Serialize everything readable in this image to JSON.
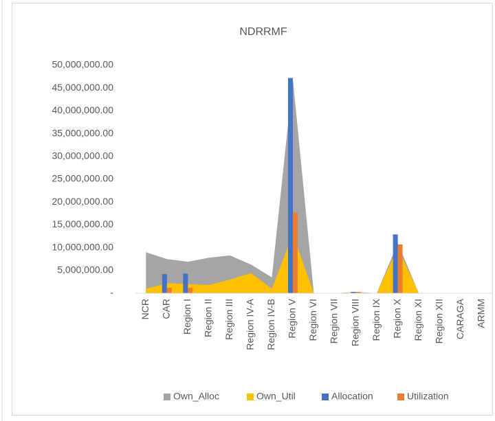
{
  "chart_data": {
    "type": "combo",
    "title": "NDRRMF",
    "categories": [
      "NCR",
      "CAR",
      "Region I",
      "Region II",
      "Region III",
      "Region IV-A",
      "Region IV-B",
      "Region V",
      "Region VI",
      "Region VII",
      "Region VIII",
      "Region IX",
      "Region X",
      "Region XI",
      "Region XII",
      "CARAGA",
      "ARMM"
    ],
    "series": [
      {
        "name": "Own_Alloc",
        "kind": "area",
        "color": "#a5a5a5",
        "values": [
          9000000,
          7500000,
          6900000,
          7800000,
          8300000,
          6300000,
          3500000,
          47000000,
          0,
          0,
          300000,
          0,
          11000000,
          0,
          0,
          0,
          0
        ]
      },
      {
        "name": "Own_Util",
        "kind": "area",
        "color": "#ffc000",
        "values": [
          1000000,
          2200000,
          2000000,
          1800000,
          3000000,
          4400000,
          1000000,
          13000000,
          0,
          0,
          200000,
          0,
          10000000,
          0,
          0,
          0,
          0
        ]
      },
      {
        "name": "Allocation",
        "kind": "bar",
        "color": "#4472c4",
        "values": [
          0,
          4200000,
          4300000,
          0,
          0,
          0,
          0,
          47200000,
          0,
          0,
          300000,
          0,
          12900000,
          0,
          0,
          0,
          0
        ]
      },
      {
        "name": "Utilization",
        "kind": "bar",
        "color": "#ed7d31",
        "values": [
          0,
          1200000,
          1200000,
          0,
          0,
          0,
          0,
          17700000,
          0,
          0,
          300000,
          0,
          10700000,
          0,
          0,
          0,
          0
        ]
      }
    ],
    "ylim": [
      0,
      50000000
    ],
    "yticks": [
      {
        "value": 0,
        "label": "-"
      },
      {
        "value": 5000000,
        "label": "5,000,000.00"
      },
      {
        "value": 10000000,
        "label": "10,000,000.00"
      },
      {
        "value": 15000000,
        "label": "15,000,000.00"
      },
      {
        "value": 20000000,
        "label": "20,000,000.00"
      },
      {
        "value": 25000000,
        "label": "25,000,000.00"
      },
      {
        "value": 30000000,
        "label": "30,000,000.00"
      },
      {
        "value": 35000000,
        "label": "35,000,000.00"
      },
      {
        "value": 40000000,
        "label": "40,000,000.00"
      },
      {
        "value": 45000000,
        "label": "45,000,000.00"
      },
      {
        "value": 50000000,
        "label": "50,000,000.00"
      }
    ],
    "grid": false,
    "legend": "bottom"
  }
}
